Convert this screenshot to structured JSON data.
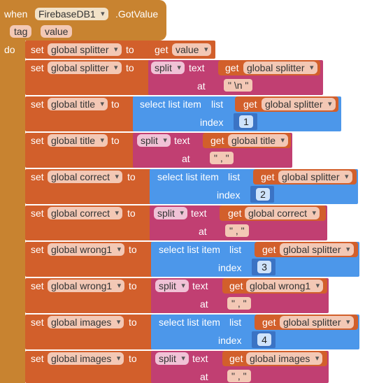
{
  "event": {
    "when": "when",
    "component": "FirebaseDB1",
    "event_name": ".GotValue",
    "param1": "tag",
    "param2": "value",
    "do": "do"
  },
  "kw": {
    "set": "set",
    "to": "to",
    "get": "get",
    "split": "split",
    "text": "text",
    "at": "at",
    "select": "select list item",
    "list": "list",
    "index": "index"
  },
  "rows": [
    {
      "var": "global splitter",
      "get": "value"
    },
    {
      "var": "global splitter",
      "src": "global splitter",
      "sep": "\" \\n \""
    },
    {
      "var": "global title",
      "src": "global splitter",
      "index": "1"
    },
    {
      "var": "global title",
      "src": "global title",
      "sep": "\" , \""
    },
    {
      "var": "global correct",
      "src": "global splitter",
      "index": "2"
    },
    {
      "var": "global correct",
      "src": "global correct",
      "sep": "\" , \""
    },
    {
      "var": "global wrong1",
      "src": "global splitter",
      "index": "3"
    },
    {
      "var": "global wrong1",
      "src": "global wrong1",
      "sep": "\" , \""
    },
    {
      "var": "global images",
      "src": "global splitter",
      "index": "4"
    },
    {
      "var": "global images",
      "src": "global images",
      "sep": "\" , \""
    }
  ],
  "colors": {
    "event": "#c88330",
    "variable": "#d25f2b",
    "text": "#c13f72",
    "list": "#4c97ea",
    "math": "#3b73c4"
  }
}
